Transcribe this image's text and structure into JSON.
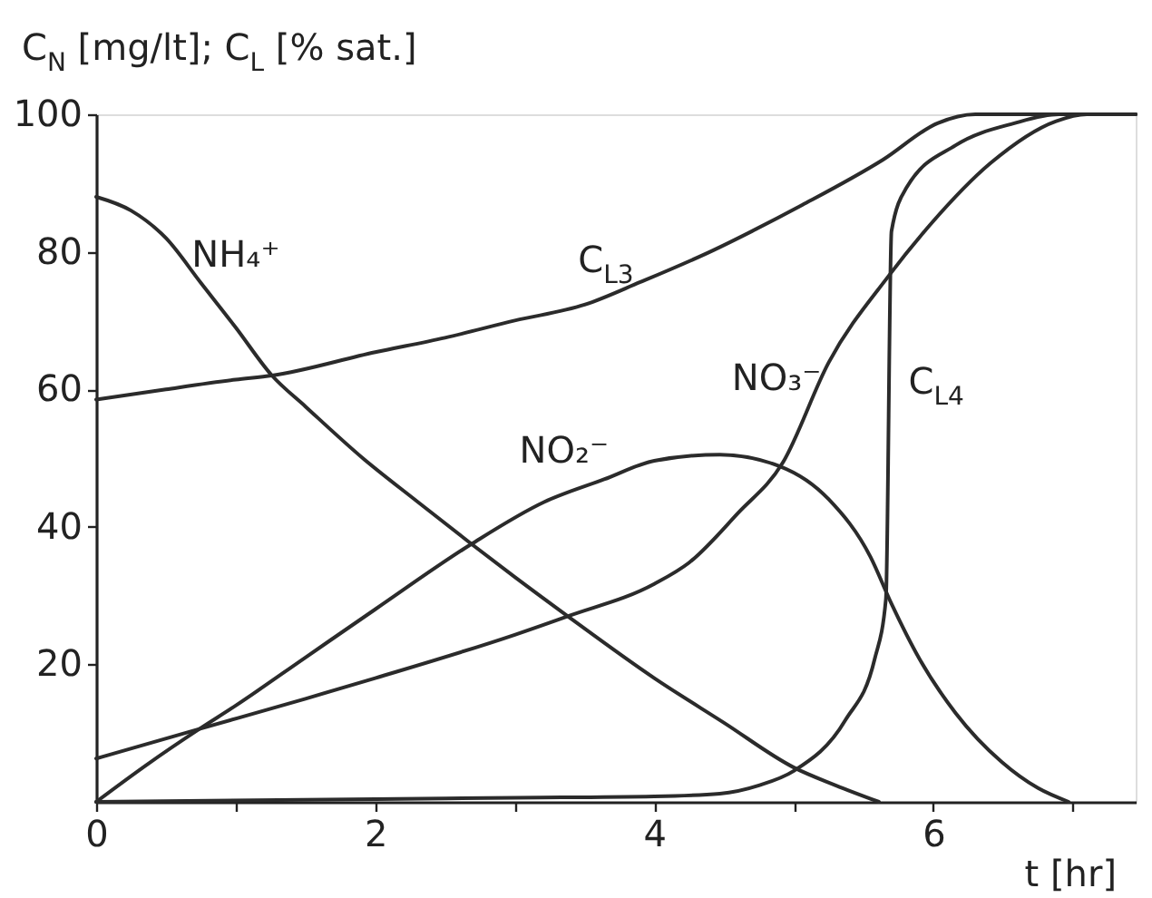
{
  "chart_data": {
    "type": "line",
    "xlabel": "t [hr]",
    "ylabel": "C$_{N}$ [mg/lt]; C$_{L}$ [% sat.]",
    "xlim": [
      0,
      7.45
    ],
    "ylim": [
      0,
      100
    ],
    "xticks": [
      0,
      {
        "value": 1,
        "label": null
      },
      2,
      {
        "value": 3,
        "label": null
      },
      4,
      {
        "value": 5,
        "label": null
      },
      6,
      {
        "value": 7,
        "label": null
      }
    ],
    "yticks": [
      20,
      40,
      60,
      80,
      100
    ],
    "line_style": "solid",
    "series": [
      {
        "name": "NH₄⁺",
        "color": "#2b2b2b",
        "x": [
          0,
          0.25,
          0.5,
          0.75,
          1,
          1.26,
          1.5,
          1.91,
          2.3,
          2.69,
          3,
          3.38,
          4,
          4.5,
          5,
          5.3,
          5.61
        ],
        "values": [
          88,
          86,
          82,
          75.5,
          69,
          62,
          57.5,
          50,
          43.7,
          37.5,
          32.7,
          27,
          18,
          11.5,
          5,
          2.4,
          0
        ]
      },
      {
        "name": "C$_{L3}$",
        "color": "#2b2b2b",
        "x": [
          0,
          0.5,
          1,
          1.26,
          2,
          2.5,
          3,
          3.5,
          3.9,
          4.42,
          4.7,
          5.06,
          5.64,
          6.03,
          6.3,
          7.45
        ],
        "values": [
          58.5,
          60,
          61.4,
          62,
          65.4,
          67.5,
          70,
          72.3,
          75.6,
          80.2,
          83,
          86.8,
          93.4,
          98.7,
          100,
          100
        ]
      },
      {
        "name": "NO₂⁻",
        "color": "#2b2b2b",
        "x": [
          0,
          0.37,
          0.74,
          1,
          1.5,
          2,
          2.69,
          3.21,
          3.64,
          4,
          4.47,
          4.9,
          5.25,
          5.55,
          5.7,
          5.9,
          6.16,
          6.49,
          6.75,
          6.97
        ],
        "values": [
          0,
          5.5,
          10.6,
          14,
          21,
          28,
          37.5,
          43.6,
          46.9,
          49.6,
          50.5,
          48.8,
          44,
          35.6,
          28.8,
          20.8,
          12.9,
          5.8,
          2,
          0
        ]
      },
      {
        "name": "NO₃⁻",
        "color": "#2b2b2b",
        "x": [
          0,
          0.74,
          1.5,
          2,
          3,
          3.38,
          4,
          4.25,
          4.6,
          4.92,
          5.25,
          5.68,
          5.98,
          6.41,
          6.88,
          7.1,
          7.45
        ],
        "values": [
          6.3,
          10.6,
          15,
          18,
          24.3,
          27,
          31.7,
          34.8,
          42,
          49.3,
          63.9,
          76.5,
          84,
          92.9,
          99,
          100,
          100
        ]
      },
      {
        "name": "C$_{L4}$",
        "color": "#2b2b2b",
        "x": [
          0,
          2,
          3,
          4,
          4.47,
          4.75,
          5,
          5.37,
          5.58,
          5.66,
          5.7,
          5.81,
          6.16,
          6.58,
          6.9,
          7.45
        ],
        "values": [
          0,
          0.4,
          0.6,
          0.8,
          1.2,
          2.4,
          4.5,
          11.9,
          20.8,
          29.5,
          83,
          89.4,
          95.5,
          98.7,
          100,
          100
        ]
      }
    ]
  }
}
